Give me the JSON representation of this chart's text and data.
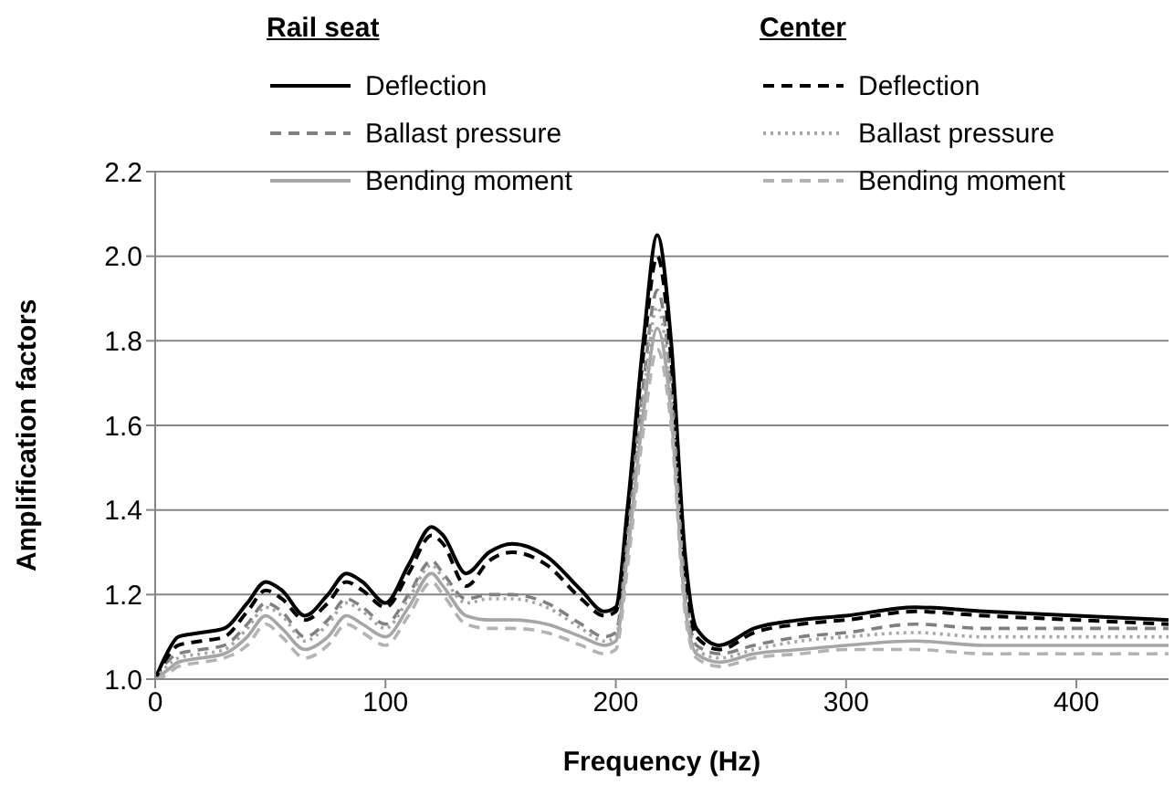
{
  "chart_data": {
    "type": "line",
    "xlabel": "Frequency (Hz)",
    "ylabel": "Amplification factors",
    "annotations": [
      "Rail seat",
      "Center"
    ],
    "x": [
      0,
      5,
      10,
      20,
      30,
      40,
      48,
      55,
      65,
      75,
      83,
      90,
      100,
      110,
      120,
      125,
      135,
      145,
      155,
      170,
      185,
      195,
      200,
      205,
      212,
      218,
      224,
      230,
      235,
      245,
      260,
      280,
      300,
      330,
      360,
      400,
      440
    ],
    "series": [
      {
        "name": "Deflection",
        "color": "#000000",
        "line_style": "solid",
        "values": [
          1.0,
          1.06,
          1.1,
          1.11,
          1.12,
          1.18,
          1.23,
          1.21,
          1.15,
          1.2,
          1.25,
          1.23,
          1.18,
          1.27,
          1.36,
          1.34,
          1.25,
          1.3,
          1.32,
          1.29,
          1.21,
          1.16,
          1.17,
          1.4,
          1.8,
          2.05,
          1.8,
          1.3,
          1.12,
          1.08,
          1.12,
          1.14,
          1.15,
          1.17,
          1.16,
          1.15,
          1.14
        ]
      },
      {
        "name": "Ballast pressure",
        "color": "#808080",
        "line_style": "dashed",
        "values": [
          1.0,
          1.04,
          1.06,
          1.07,
          1.08,
          1.13,
          1.18,
          1.16,
          1.1,
          1.14,
          1.19,
          1.17,
          1.13,
          1.2,
          1.28,
          1.25,
          1.19,
          1.2,
          1.2,
          1.18,
          1.13,
          1.1,
          1.11,
          1.33,
          1.7,
          1.92,
          1.7,
          1.22,
          1.08,
          1.06,
          1.08,
          1.1,
          1.11,
          1.13,
          1.12,
          1.12,
          1.12
        ]
      },
      {
        "name": "Bending moment",
        "color": "#a6a6a6",
        "line_style": "solid",
        "values": [
          1.0,
          1.02,
          1.04,
          1.05,
          1.06,
          1.1,
          1.15,
          1.12,
          1.07,
          1.1,
          1.15,
          1.13,
          1.1,
          1.17,
          1.25,
          1.22,
          1.15,
          1.14,
          1.14,
          1.13,
          1.1,
          1.08,
          1.09,
          1.29,
          1.63,
          1.83,
          1.63,
          1.18,
          1.06,
          1.04,
          1.06,
          1.07,
          1.08,
          1.09,
          1.08,
          1.08,
          1.08
        ]
      },
      {
        "name": "Deflection",
        "color": "#000000",
        "line_style": "dashed",
        "values": [
          1.0,
          1.05,
          1.08,
          1.09,
          1.1,
          1.16,
          1.21,
          1.19,
          1.14,
          1.18,
          1.23,
          1.21,
          1.17,
          1.25,
          1.34,
          1.32,
          1.22,
          1.28,
          1.3,
          1.27,
          1.19,
          1.15,
          1.16,
          1.38,
          1.77,
          2.0,
          1.76,
          1.27,
          1.1,
          1.07,
          1.11,
          1.13,
          1.14,
          1.16,
          1.15,
          1.14,
          1.13
        ]
      },
      {
        "name": "Ballast pressure",
        "color": "#a6a6a6",
        "line_style": "dotted",
        "values": [
          1.0,
          1.03,
          1.05,
          1.06,
          1.07,
          1.12,
          1.17,
          1.15,
          1.09,
          1.13,
          1.18,
          1.16,
          1.12,
          1.19,
          1.27,
          1.24,
          1.18,
          1.19,
          1.19,
          1.17,
          1.12,
          1.09,
          1.1,
          1.31,
          1.67,
          1.88,
          1.67,
          1.2,
          1.07,
          1.05,
          1.07,
          1.09,
          1.1,
          1.11,
          1.1,
          1.1,
          1.1
        ]
      },
      {
        "name": "Bending moment",
        "color": "#b3b3b3",
        "line_style": "dashed",
        "values": [
          1.0,
          1.01,
          1.03,
          1.04,
          1.05,
          1.08,
          1.13,
          1.1,
          1.05,
          1.08,
          1.13,
          1.11,
          1.08,
          1.15,
          1.23,
          1.2,
          1.13,
          1.12,
          1.12,
          1.11,
          1.08,
          1.06,
          1.07,
          1.26,
          1.59,
          1.78,
          1.6,
          1.16,
          1.05,
          1.03,
          1.05,
          1.06,
          1.07,
          1.07,
          1.06,
          1.06,
          1.06
        ]
      }
    ],
    "xlim": [
      0,
      440
    ],
    "xticks": [
      0,
      100,
      200,
      300,
      400
    ],
    "ylim": [
      1.0,
      2.2
    ],
    "yticks": [
      {
        "value": 1.0,
        "label": "1.0"
      },
      {
        "value": 1.2,
        "label": "1.2"
      },
      {
        "value": 1.4,
        "label": "1.4"
      },
      {
        "value": 1.6,
        "label": "1.6"
      },
      {
        "value": 1.8,
        "label": "1.8"
      },
      {
        "value": 2.0,
        "label": "2.0"
      },
      {
        "value": 2.2,
        "label": "2.2"
      }
    ],
    "grid": "y",
    "legend": "top",
    "marker": "none"
  }
}
